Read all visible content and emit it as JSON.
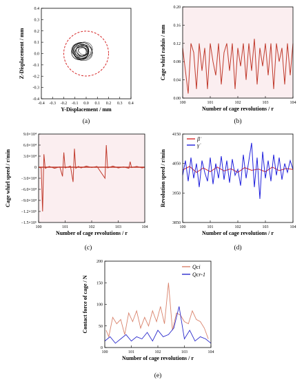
{
  "chart_data": [
    {
      "panel": "(a)",
      "type": "scatter",
      "xlabel": "Y-Displacement / mm",
      "ylabel": "Z-Displacement / mm",
      "xlim": [
        -0.4,
        0.4
      ],
      "ylim": [
        -0.4,
        0.4
      ],
      "xticks": [
        "-0.4",
        "-0.3",
        "-0.2",
        "-0.1",
        "0.0",
        "0.1",
        "0.2",
        "0.3",
        "0.4"
      ],
      "yticks": [
        "-0.4",
        "-0.3",
        "-0.2",
        "-0.1",
        "0.0",
        "0.1",
        "0.2",
        "0.3",
        "0.4"
      ],
      "clearance_circle": {
        "cx": 0.0,
        "cy": 0.0,
        "r": 0.2,
        "style": "dashed",
        "color": "#d62728"
      },
      "orbit": {
        "cx": -0.04,
        "cy": 0.02,
        "rx": 0.09,
        "ry": 0.075,
        "color": "#000000"
      }
    },
    {
      "panel": "(b)",
      "type": "line",
      "xlabel": "Number of cage revolutions / r",
      "ylabel": "Cage whirl raduis / mm",
      "xlim": [
        100,
        104
      ],
      "ylim": [
        0.0,
        0.2
      ],
      "xticks": [
        "100",
        "101",
        "102",
        "103",
        "104"
      ],
      "yticks": [
        "0.00",
        "0.04",
        "0.08",
        "0.12",
        "0.16",
        "0.20"
      ],
      "series": [
        {
          "color": "#c0392b",
          "x": [
            100.0,
            100.1,
            100.2,
            100.3,
            100.4,
            100.5,
            100.6,
            100.7,
            100.8,
            100.9,
            101.0,
            101.1,
            101.2,
            101.3,
            101.4,
            101.5,
            101.6,
            101.7,
            101.8,
            101.9,
            102.0,
            102.1,
            102.2,
            102.3,
            102.4,
            102.5,
            102.6,
            102.7,
            102.8,
            102.9,
            103.0,
            103.1,
            103.2,
            103.3,
            103.4,
            103.5,
            103.6,
            103.7,
            103.8,
            103.9,
            104.0
          ],
          "values": [
            0.11,
            0.06,
            0.01,
            0.12,
            0.1,
            0.02,
            0.12,
            0.06,
            0.11,
            0.02,
            0.12,
            0.08,
            0.05,
            0.12,
            0.03,
            0.1,
            0.12,
            0.06,
            0.12,
            0.02,
            0.11,
            0.07,
            0.12,
            0.04,
            0.12,
            0.06,
            0.13,
            0.03,
            0.11,
            0.07,
            0.12,
            0.05,
            0.12,
            0.02,
            0.12,
            0.08,
            0.11,
            0.03,
            0.12,
            0.05,
            0.12
          ]
        }
      ]
    },
    {
      "panel": "(c)",
      "type": "line",
      "xlabel": "Number of cage revolutions / r",
      "ylabel": "Cage whirl speed / r/min",
      "xlim": [
        100,
        104
      ],
      "ylim": [
        -150000,
        90000
      ],
      "xticks": [
        "100",
        "101",
        "102",
        "103",
        "104"
      ],
      "yticks": [
        "9.0×10⁴",
        "6.0×10⁴",
        "3.0×10⁴",
        "0",
        "−3.0×10⁴",
        "−6.0×10⁴",
        "−9.0×10⁴",
        "−1.2×10⁵",
        "−1.5×10⁵"
      ],
      "ytick_values": [
        90000,
        60000,
        30000,
        0,
        -30000,
        -60000,
        -90000,
        -120000,
        -150000
      ],
      "series": [
        {
          "color": "#c0392b",
          "x": [
            100.0,
            100.1,
            100.15,
            100.2,
            100.25,
            100.4,
            100.6,
            100.8,
            100.9,
            100.95,
            101.0,
            101.2,
            101.3,
            101.35,
            101.4,
            101.5,
            101.6,
            101.8,
            102.0,
            102.2,
            102.5,
            102.55,
            102.6,
            102.8,
            103.0,
            103.2,
            103.4,
            103.45,
            103.5,
            103.7,
            103.9,
            104.0
          ],
          "values": [
            0,
            -2000,
            -120000,
            35000,
            -3000,
            2000,
            -3000,
            1000,
            -25000,
            40000,
            -2000,
            3000,
            -40000,
            50000,
            -3000,
            2000,
            -2000,
            3000,
            -1000,
            2000,
            -30000,
            60000,
            -2000,
            3000,
            -2000,
            1000,
            -3000,
            15000,
            -1000,
            2000,
            -2000,
            0
          ]
        }
      ]
    },
    {
      "panel": "(d)",
      "type": "line",
      "xlabel": "Number of cage revolutions / r",
      "ylabel": "Revolution speed / r/min",
      "xlim": [
        100,
        104
      ],
      "ylim": [
        3850,
        4150
      ],
      "xticks": [
        "100",
        "101",
        "102",
        "103",
        "104"
      ],
      "yticks": [
        "3850",
        "3950",
        "4050",
        "4150"
      ],
      "legend": [
        "β̇",
        "γ̇"
      ],
      "legend_position": "top-left",
      "series": [
        {
          "name": "β̇",
          "color": "#d62728",
          "x": [
            100.0,
            100.25,
            100.5,
            100.75,
            101.0,
            101.25,
            101.5,
            101.75,
            102.0,
            102.25,
            102.5,
            102.75,
            103.0,
            103.25,
            103.5,
            103.75,
            104.0
          ],
          "values": [
            4028,
            4040,
            4020,
            4035,
            4022,
            4038,
            4025,
            4032,
            4020,
            4036,
            4027,
            4031,
            4022,
            4038,
            4026,
            4033,
            4030
          ]
        },
        {
          "name": "γ̇",
          "color": "#1f1fdc",
          "x": [
            100.0,
            100.1,
            100.2,
            100.3,
            100.4,
            100.5,
            100.6,
            100.7,
            100.8,
            100.9,
            101.0,
            101.1,
            101.2,
            101.3,
            101.4,
            101.5,
            101.6,
            101.7,
            101.8,
            101.9,
            102.0,
            102.1,
            102.2,
            102.3,
            102.4,
            102.5,
            102.6,
            102.7,
            102.8,
            102.9,
            103.0,
            103.1,
            103.2,
            103.3,
            103.4,
            103.5,
            103.6,
            103.7,
            103.8,
            103.9,
            104.0
          ],
          "values": [
            4010,
            4060,
            3990,
            4070,
            4000,
            4050,
            3970,
            4060,
            4020,
            3990,
            4070,
            3980,
            4050,
            4000,
            4075,
            3995,
            4060,
            3985,
            4065,
            4010,
            4030,
            3975,
            4080,
            4000,
            4060,
            4120,
            3970,
            4070,
            3930,
            4090,
            4000,
            4060,
            3990,
            4080,
            4010,
            4070,
            3995,
            4050,
            4020,
            4060,
            4030
          ]
        }
      ]
    },
    {
      "panel": "(e)",
      "type": "line",
      "xlabel": "Number of cage revolutions / r",
      "ylabel": "Contact force of cage / N",
      "xlim": [
        100,
        104
      ],
      "ylim": [
        0,
        200
      ],
      "xticks": [
        "100",
        "101",
        "102",
        "103",
        "104"
      ],
      "yticks": [
        "0",
        "50",
        "100",
        "150",
        "200"
      ],
      "legend": [
        "Qci",
        "Qcr-1"
      ],
      "legend_position": "top-right",
      "series": [
        {
          "name": "Qci",
          "color": "#d9826b",
          "x": [
            100.05,
            100.15,
            100.3,
            100.45,
            100.6,
            100.75,
            100.9,
            101.05,
            101.2,
            101.35,
            101.5,
            101.65,
            101.8,
            101.95,
            102.1,
            102.25,
            102.4,
            102.55,
            102.7,
            102.85,
            103.0,
            103.15,
            103.3,
            103.45,
            103.6,
            103.75,
            103.9
          ],
          "values": [
            40,
            25,
            70,
            55,
            65,
            30,
            80,
            60,
            85,
            45,
            70,
            50,
            85,
            60,
            95,
            55,
            150,
            40,
            80,
            75,
            60,
            55,
            85,
            65,
            60,
            45,
            20
          ]
        },
        {
          "name": "Qcr-1",
          "color": "#2a2acc",
          "x": [
            100.0,
            100.2,
            100.4,
            100.6,
            100.8,
            101.0,
            101.2,
            101.4,
            101.6,
            101.8,
            102.0,
            102.2,
            102.4,
            102.6,
            102.8,
            103.0,
            103.2,
            103.4,
            103.6,
            103.8,
            104.0
          ],
          "values": [
            15,
            25,
            10,
            20,
            30,
            15,
            25,
            20,
            35,
            15,
            40,
            25,
            30,
            45,
            95,
            20,
            40,
            15,
            25,
            20,
            10
          ]
        }
      ]
    }
  ],
  "captions": [
    "(a)",
    "(b)",
    "(c)",
    "(d)",
    "(e)"
  ]
}
